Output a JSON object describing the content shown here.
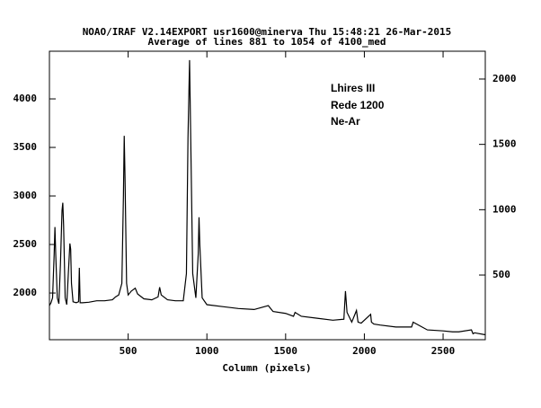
{
  "chart_data": {
    "type": "line",
    "title": "NOAO/IRAF V2.14EXPORT usr1600@minerva Thu 15:48:21 26-Mar-2015",
    "subtitle": "Average of lines 881 to 1054 of 4100_med",
    "xlabel": "Column (pixels)",
    "annotations": [
      "Lhires III",
      "Rede 1200",
      "Ne-Ar"
    ],
    "x": [
      0,
      10,
      20,
      30,
      35,
      40,
      50,
      60,
      70,
      80,
      85,
      90,
      100,
      110,
      120,
      130,
      135,
      140,
      150,
      170,
      185,
      190,
      195,
      210,
      250,
      300,
      350,
      400,
      420,
      440,
      460,
      470,
      475,
      480,
      490,
      500,
      520,
      545,
      560,
      600,
      650,
      690,
      700,
      710,
      750,
      800,
      850,
      870,
      880,
      890,
      900,
      910,
      930,
      945,
      950,
      955,
      970,
      1000,
      1100,
      1200,
      1300,
      1390,
      1420,
      1500,
      1550,
      1560,
      1600,
      1700,
      1800,
      1870,
      1880,
      1890,
      1920,
      1950,
      1960,
      1980,
      2040,
      2045,
      2060,
      2100,
      2200,
      2300,
      2310,
      2400,
      2500,
      2560,
      2600,
      2680,
      2690,
      2700,
      2768
    ],
    "series": [
      {
        "name": "4100_med",
        "color": "#000000",
        "values": [
          1870,
          1900,
          1950,
          2400,
          2680,
          2400,
          1950,
          1890,
          2300,
          2850,
          2930,
          2700,
          1950,
          1880,
          2200,
          2510,
          2450,
          2100,
          1910,
          1900,
          1910,
          2260,
          1900,
          1900,
          1905,
          1920,
          1920,
          1930,
          1960,
          1980,
          2100,
          3000,
          3620,
          3200,
          2100,
          1980,
          2020,
          2050,
          1990,
          1940,
          1930,
          1960,
          2060,
          1980,
          1930,
          1920,
          1920,
          2200,
          3600,
          4400,
          3300,
          2200,
          1950,
          2400,
          2780,
          2500,
          1950,
          1880,
          1860,
          1840,
          1830,
          1870,
          1810,
          1790,
          1760,
          1800,
          1760,
          1740,
          1720,
          1730,
          2020,
          1800,
          1700,
          1820,
          1700,
          1690,
          1780,
          1700,
          1680,
          1670,
          1650,
          1650,
          1700,
          1620,
          1610,
          1600,
          1600,
          1620,
          1580,
          1590,
          1570
        ]
      }
    ],
    "xlim": [
      0,
      2768
    ],
    "xticks": [
      500,
      1000,
      1500,
      2000,
      2500
    ],
    "ylim": [
      1519,
      4491
    ],
    "yticks": [
      2000,
      2500,
      3000,
      3500,
      4000
    ],
    "y2lim": [
      5,
      2213
    ],
    "y2ticks": [
      500,
      1000,
      1500,
      2000
    ],
    "grid": false
  }
}
